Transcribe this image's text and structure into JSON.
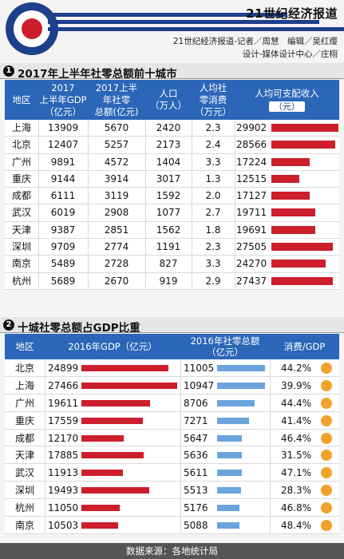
{
  "header": {
    "paper_name": "21世纪经济报道",
    "credit_line1": "21世纪经济报道-记者／周慧　编辑／吴红缨",
    "credit_line2": "设计-媒体设计中心／庄栩"
  },
  "colors": {
    "blue": "#2b66b8",
    "navy": "#1d3f8c",
    "red": "#cc1e2b",
    "light_blue": "#6aa4dc",
    "orange": "#f1a22b"
  },
  "section1": {
    "number": "1",
    "title": "2017年上半年社零总额前十城市",
    "headers": {
      "region": "地区",
      "gdp_l1": "2017",
      "gdp_l2": "上半年GDP",
      "gdp_l3": "（亿元）",
      "retail_l1": "2017上半",
      "retail_l2": "年社零",
      "retail_l3": "总额(亿元)",
      "pop_l1": "人口",
      "pop_l2": "（万人）",
      "percap_l1": "人均社",
      "percap_l2": "零消费",
      "percap_l3": "（万元）",
      "income_l1": "人均可支配收入",
      "income_l2": "（元）"
    },
    "rows": [
      {
        "region": "上海",
        "gdp": "13909",
        "retail": "5670",
        "pop": "2420",
        "percap": "2.3",
        "income": "29902",
        "income_value": 29902
      },
      {
        "region": "北京",
        "gdp": "12407",
        "retail": "5257",
        "pop": "2173",
        "percap": "2.4",
        "income": "28566",
        "income_value": 28566
      },
      {
        "region": "广州",
        "gdp": "9891",
        "retail": "4572",
        "pop": "1404",
        "percap": "3.3",
        "income": "17224",
        "income_value": 17224
      },
      {
        "region": "重庆",
        "gdp": "9144",
        "retail": "3914",
        "pop": "3017",
        "percap": "1.3",
        "income": "12515",
        "income_value": 12515
      },
      {
        "region": "成都",
        "gdp": "6111",
        "retail": "3119",
        "pop": "1592",
        "percap": "2.0",
        "income": "17127",
        "income_value": 17127
      },
      {
        "region": "武汉",
        "gdp": "6019",
        "retail": "2908",
        "pop": "1077",
        "percap": "2.7",
        "income": "19711",
        "income_value": 19711
      },
      {
        "region": "天津",
        "gdp": "9387",
        "retail": "2851",
        "pop": "1562",
        "percap": "1.8",
        "income": "19691",
        "income_value": 19691
      },
      {
        "region": "深圳",
        "gdp": "9709",
        "retail": "2774",
        "pop": "1191",
        "percap": "2.3",
        "income": "27505",
        "income_value": 27505
      },
      {
        "region": "南京",
        "gdp": "5489",
        "retail": "2728",
        "pop": "827",
        "percap": "3.3",
        "income": "24270",
        "income_value": 24270
      },
      {
        "region": "杭州",
        "gdp": "5689",
        "retail": "2670",
        "pop": "919",
        "percap": "2.9",
        "income": "27437",
        "income_value": 27437
      }
    ]
  },
  "section2": {
    "number": "2",
    "title": "十城社零总额占GDP比重",
    "headers": {
      "region": "地区",
      "gdp": "2016年GDP（亿元）",
      "retail_l1": "2016年社零总额",
      "retail_l2": "（亿元）",
      "ratio": "消费/GDP"
    },
    "rows": [
      {
        "region": "北京",
        "gdp": "24899",
        "gdp_value": 24899,
        "retail": "11005",
        "retail_value": 11005,
        "ratio": "44.2%"
      },
      {
        "region": "上海",
        "gdp": "27466",
        "gdp_value": 27466,
        "retail": "10947",
        "retail_value": 10947,
        "ratio": "39.9%"
      },
      {
        "region": "广州",
        "gdp": "19611",
        "gdp_value": 19611,
        "retail": "8706",
        "retail_value": 8706,
        "ratio": "44.4%"
      },
      {
        "region": "重庆",
        "gdp": "17559",
        "gdp_value": 17559,
        "retail": "7271",
        "retail_value": 7271,
        "ratio": "41.4%"
      },
      {
        "region": "成都",
        "gdp": "12170",
        "gdp_value": 12170,
        "retail": "5647",
        "retail_value": 5647,
        "ratio": "46.4%"
      },
      {
        "region": "天津",
        "gdp": "17885",
        "gdp_value": 17885,
        "retail": "5636",
        "retail_value": 5636,
        "ratio": "31.5%"
      },
      {
        "region": "武汉",
        "gdp": "11913",
        "gdp_value": 11913,
        "retail": "5611",
        "retail_value": 5611,
        "ratio": "47.1%"
      },
      {
        "region": "深圳",
        "gdp": "19493",
        "gdp_value": 19493,
        "retail": "5513",
        "retail_value": 5513,
        "ratio": "28.3%"
      },
      {
        "region": "杭州",
        "gdp": "11050",
        "gdp_value": 11050,
        "retail": "5176",
        "retail_value": 5176,
        "ratio": "46.8%"
      },
      {
        "region": "南京",
        "gdp": "10503",
        "gdp_value": 10503,
        "retail": "5088",
        "retail_value": 5088,
        "ratio": "48.4%"
      }
    ]
  },
  "footer": {
    "source": "数据来源：各地统计局"
  }
}
